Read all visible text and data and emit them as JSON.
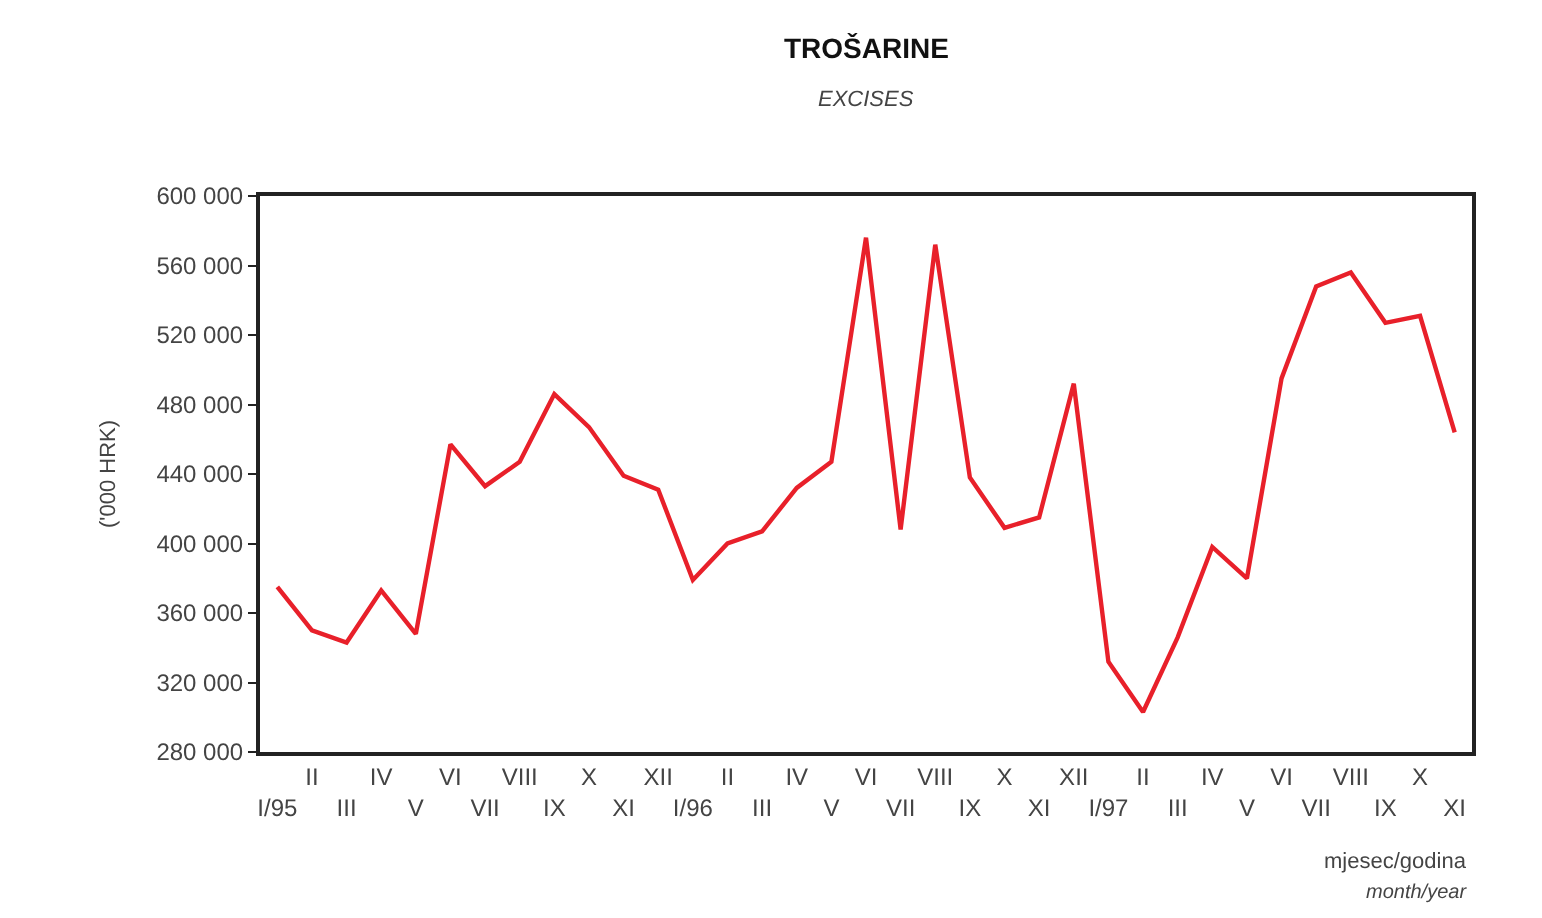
{
  "chart_data": {
    "type": "line",
    "title": "TROŠARINE",
    "subtitle": "EXCISES",
    "ylabel": "('000 HRK)",
    "xlabel": "mjesec/godina",
    "annotations": [
      "month/year"
    ],
    "categories": [
      "I/95",
      "II",
      "III",
      "IV",
      "V",
      "VI",
      "VII",
      "VIII",
      "IX",
      "X",
      "XI",
      "XII",
      "I/96",
      "II",
      "III",
      "IV",
      "V",
      "VI",
      "VII",
      "VIII",
      "IX",
      "X",
      "XI",
      "XII",
      "I/97",
      "II",
      "III",
      "IV",
      "V",
      "VI",
      "VII",
      "VIII",
      "IX",
      "X",
      "XI"
    ],
    "series": [
      {
        "color": "#e8202a",
        "values": [
          375000,
          350000,
          343000,
          373000,
          348000,
          457000,
          433000,
          447000,
          486000,
          467000,
          439000,
          431000,
          379000,
          400000,
          407000,
          432000,
          447000,
          576000,
          408000,
          572000,
          438000,
          409000,
          415000,
          492000,
          332000,
          303000,
          346000,
          398000,
          380000,
          495000,
          548000,
          556000,
          527000,
          531000,
          464000
        ]
      }
    ],
    "ylim": [
      280000,
      600000
    ],
    "yticks": [
      {
        "value": 280000,
        "label": "280 000"
      },
      {
        "value": 320000,
        "label": "320 000"
      },
      {
        "value": 360000,
        "label": "360 000"
      },
      {
        "value": 400000,
        "label": "400 000"
      },
      {
        "value": 440000,
        "label": "440 000"
      },
      {
        "value": 480000,
        "label": "480 000"
      },
      {
        "value": 520000,
        "label": "520 000"
      },
      {
        "value": 560000,
        "label": "560 000"
      },
      {
        "value": 600000,
        "label": "600 000"
      }
    ],
    "marker": "none",
    "line_style": "solid"
  }
}
